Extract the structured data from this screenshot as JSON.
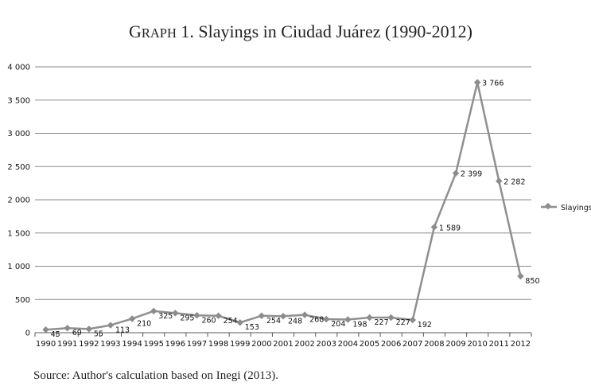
{
  "chart_data": {
    "type": "line",
    "title": "Graph 1. Slayings in Ciudad Juárez (1990-2012)",
    "title_parts": {
      "first_letter": "G",
      "small_caps": "RAPH",
      "rest": " 1. Slayings in Ciudad Juárez (1990-2012)"
    },
    "categories": [
      "1990",
      "1991",
      "1992",
      "1993",
      "1994",
      "1995",
      "1996",
      "1997",
      "1998",
      "1999",
      "2000",
      "2001",
      "2002",
      "2003",
      "2004",
      "2005",
      "2006",
      "2007",
      "2008",
      "2009",
      "2010",
      "2011",
      "2012"
    ],
    "series": [
      {
        "name": "Slayings",
        "values": [
          45,
          69,
          55,
          113,
          210,
          325,
          295,
          260,
          254,
          153,
          254,
          248,
          268,
          204,
          198,
          227,
          227,
          192,
          1589,
          2399,
          3766,
          2282,
          850
        ],
        "labels": [
          "45",
          "69",
          "55",
          "113",
          "210",
          "325",
          "295",
          "260",
          "254",
          "153",
          "254",
          "248",
          "268",
          "204",
          "198",
          "227",
          "227",
          "192",
          "1 589",
          "2 399",
          "3 766",
          "2 282",
          "850"
        ]
      }
    ],
    "ylim": [
      0,
      4000
    ],
    "yticks": [
      0,
      500,
      1000,
      1500,
      2000,
      2500,
      3000,
      3500,
      4000
    ],
    "ytick_labels": [
      "0",
      "500",
      "1 000",
      "1 500",
      "2 000",
      "2 500",
      "3 000",
      "3 500",
      "4 000"
    ],
    "grid": true,
    "legend": "right",
    "xlabel": "",
    "ylabel": "",
    "source": "Source: Author's calculation based on Inegi (2013).",
    "colors": {
      "line": "#8f8f8f",
      "marker": "#8c8c8c",
      "grid": "#8a8a8a",
      "axis": "#555555"
    }
  }
}
